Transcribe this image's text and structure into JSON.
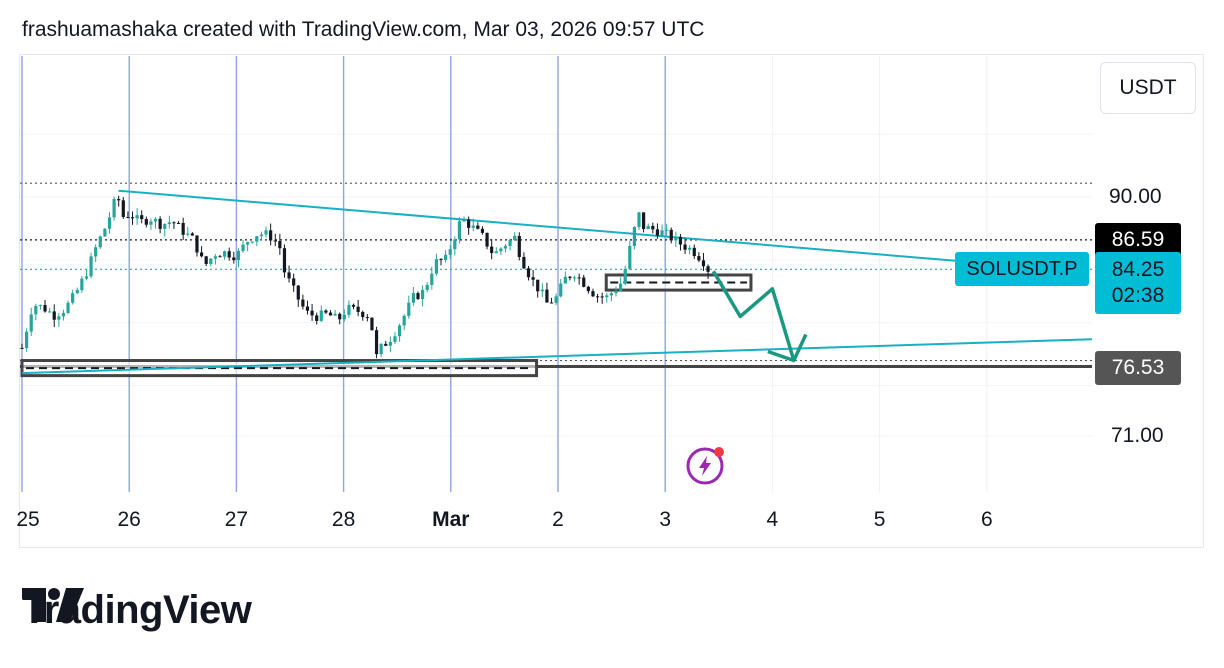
{
  "header": {
    "credit": "frashuamashaka created with TradingView.com, Mar 03, 2026 09:57 UTC"
  },
  "currency": "USDT",
  "brand": {
    "name": "TradingView"
  },
  "chart_data": {
    "type": "candlestick",
    "symbol": "SOLUSDT.P",
    "currency": "USDT",
    "y_ticks": [
      {
        "label": "90.00",
        "value": 90.0
      },
      {
        "label": "71.00",
        "value": 71.0
      }
    ],
    "ylim": [
      66.0,
      101.0
    ],
    "x_ticks": [
      {
        "label": "25",
        "day": 0
      },
      {
        "label": "26",
        "day": 1
      },
      {
        "label": "27",
        "day": 2
      },
      {
        "label": "28",
        "day": 3
      },
      {
        "label": "Mar",
        "day": 4
      },
      {
        "label": "2",
        "day": 5
      },
      {
        "label": "3",
        "day": 6
      },
      {
        "label": "4",
        "day": 7
      },
      {
        "label": "5",
        "day": 8
      },
      {
        "label": "6",
        "day": 9
      }
    ],
    "price_tags": [
      {
        "value": 86.59,
        "label": "86.59",
        "color": "#000000",
        "line": "dotted-black"
      },
      {
        "value": 84.25,
        "label": "84.25",
        "countdown": "02:38",
        "color": "#00bcd4",
        "line": "dotted-teal"
      },
      {
        "value": 76.53,
        "label": "76.53",
        "color": "#555555",
        "line": "solid-grey"
      }
    ],
    "high_level": 91.1,
    "close_path": [
      [
        0.0,
        78.0
      ],
      [
        0.1,
        81.5
      ],
      [
        0.2,
        81.2
      ],
      [
        0.3,
        80.6
      ],
      [
        0.4,
        81.1
      ],
      [
        0.5,
        82.3
      ],
      [
        0.6,
        84.0
      ],
      [
        0.7,
        86.2
      ],
      [
        0.8,
        88.0
      ],
      [
        0.85,
        89.4
      ],
      [
        0.9,
        89.8
      ],
      [
        0.95,
        88.3
      ],
      [
        1.0,
        88.7
      ],
      [
        1.1,
        88.0
      ],
      [
        1.2,
        88.3
      ],
      [
        1.3,
        87.8
      ],
      [
        1.4,
        88.1
      ],
      [
        1.5,
        87.3
      ],
      [
        1.6,
        86.6
      ],
      [
        1.7,
        84.5
      ],
      [
        1.8,
        85.5
      ],
      [
        1.9,
        85.6
      ],
      [
        2.0,
        85.3
      ],
      [
        2.1,
        86.5
      ],
      [
        2.2,
        87.1
      ],
      [
        2.3,
        87.0
      ],
      [
        2.4,
        86.2
      ],
      [
        2.45,
        84.0
      ],
      [
        2.55,
        82.3
      ],
      [
        2.65,
        80.8
      ],
      [
        2.75,
        80.5
      ],
      [
        2.85,
        80.7
      ],
      [
        2.95,
        80.2
      ],
      [
        3.0,
        80.8
      ],
      [
        3.05,
        81.1
      ],
      [
        3.15,
        80.9
      ],
      [
        3.25,
        80.5
      ],
      [
        3.3,
        77.2
      ],
      [
        3.35,
        78.0
      ],
      [
        3.45,
        78.9
      ],
      [
        3.55,
        80.3
      ],
      [
        3.65,
        82.0
      ],
      [
        3.75,
        82.5
      ],
      [
        3.85,
        84.8
      ],
      [
        3.95,
        85.0
      ],
      [
        4.05,
        87.2
      ],
      [
        4.1,
        88.3
      ],
      [
        4.2,
        87.6
      ],
      [
        4.3,
        86.8
      ],
      [
        4.4,
        85.4
      ],
      [
        4.5,
        86.2
      ],
      [
        4.6,
        86.8
      ],
      [
        4.65,
        85.3
      ],
      [
        4.75,
        83.5
      ],
      [
        4.85,
        82.3
      ],
      [
        4.9,
        81.5
      ],
      [
        5.0,
        82.1
      ],
      [
        5.05,
        83.4
      ],
      [
        5.15,
        84.0
      ],
      [
        5.25,
        83.1
      ],
      [
        5.35,
        82.2
      ],
      [
        5.45,
        82.0
      ],
      [
        5.55,
        82.8
      ],
      [
        5.6,
        83.3
      ],
      [
        5.7,
        87.0
      ],
      [
        5.75,
        88.7
      ],
      [
        5.8,
        87.6
      ],
      [
        5.9,
        87.4
      ],
      [
        6.0,
        87.1
      ],
      [
        6.1,
        86.5
      ],
      [
        6.2,
        86.0
      ],
      [
        6.25,
        85.8
      ],
      [
        6.35,
        85.0
      ],
      [
        6.4,
        84.25
      ]
    ],
    "annotations": {
      "descending_trendline": {
        "from": [
          0.9,
          90.5
        ],
        "to": [
          8.75,
          84.9
        ]
      },
      "ascending_trendline": {
        "from": [
          0.0,
          76.0
        ],
        "to": [
          10.0,
          78.7
        ]
      },
      "zone_low": {
        "from_day": 0.0,
        "to_day": 4.8,
        "top": 77.0,
        "bottom": 75.8
      },
      "zone_mid": {
        "from_day": 5.45,
        "to_day": 6.8,
        "top": 83.8,
        "bottom": 82.6
      },
      "projection_path": [
        [
          6.45,
          84.1
        ],
        [
          6.7,
          80.5
        ],
        [
          7.0,
          82.7
        ],
        [
          7.2,
          77.0
        ]
      ]
    }
  }
}
